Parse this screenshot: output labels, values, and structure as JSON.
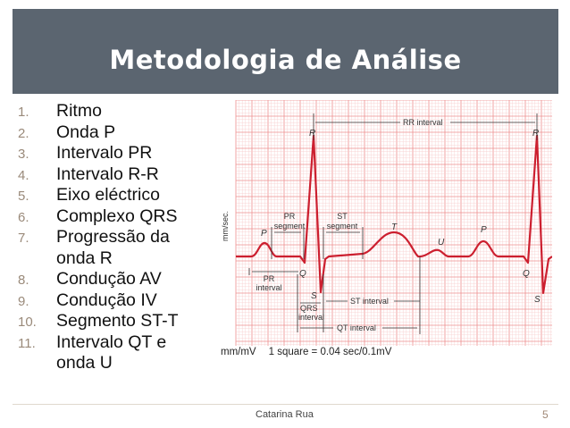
{
  "slide": {
    "title": "Metodologia de Análise",
    "items": [
      {
        "num": "1.",
        "lines": [
          "Ritmo"
        ]
      },
      {
        "num": "2.",
        "lines": [
          "Onda P"
        ]
      },
      {
        "num": "3.",
        "lines": [
          "Intervalo PR"
        ]
      },
      {
        "num": "4.",
        "lines": [
          "Intervalo R-R"
        ]
      },
      {
        "num": "5.",
        "lines": [
          "Eixo eléctrico"
        ]
      },
      {
        "num": "6.",
        "lines": [
          "Complexo QRS"
        ]
      },
      {
        "num": "7.",
        "lines": [
          "Progressão da",
          "onda R"
        ]
      },
      {
        "num": "8.",
        "lines": [
          "Condução AV"
        ]
      },
      {
        "num": "9.",
        "lines": [
          "Condução IV"
        ]
      },
      {
        "num": "10.",
        "lines": [
          "Segmento ST-T"
        ]
      },
      {
        "num": "11.",
        "lines": [
          "Intervalo QT e",
          "onda U"
        ]
      }
    ],
    "footer": {
      "author": "Catarina Rua",
      "page": "5"
    }
  },
  "ecg_figure": {
    "y_axis_label": "mm/sec.",
    "caption_units": "mm/mV",
    "caption_scale": "1 square = 0.04 sec/0.1mV",
    "labels": {
      "rr_interval": "RR interval",
      "r1": "R",
      "r2": "R",
      "p1": "P",
      "p2": "P",
      "t": "T",
      "u": "U",
      "q1": "Q",
      "q2": "Q",
      "s1": "S",
      "s2": "S",
      "pr_segment": [
        "PR",
        "segment"
      ],
      "st_segment": [
        "ST",
        "segment"
      ],
      "pr_interval": [
        "PR",
        "interval"
      ],
      "qrs_interval": [
        "QRS",
        "interval"
      ],
      "st_interval": "ST interval",
      "qt_interval": "QT interval"
    },
    "colors": {
      "grid_major": "#ee8f8f",
      "grid_minor": "#f8cccc",
      "trace": "#cc1f2f",
      "annotation": "#333333"
    }
  }
}
